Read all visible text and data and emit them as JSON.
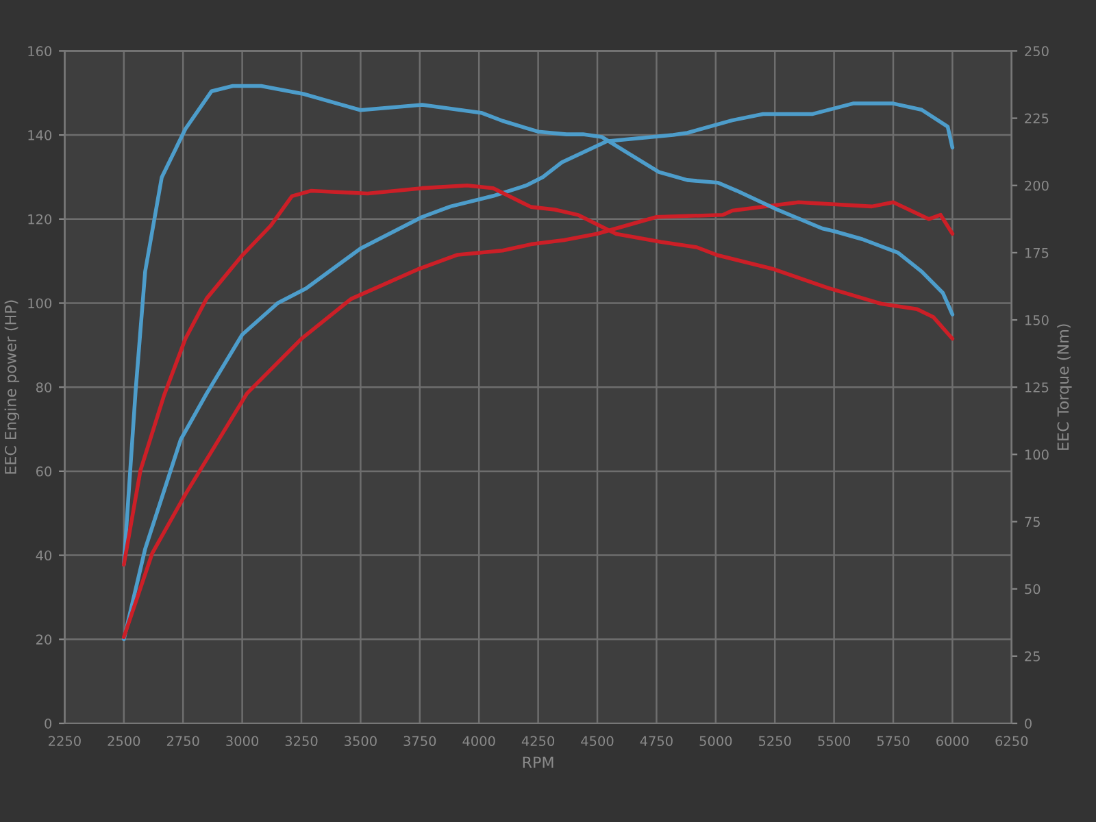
{
  "chart_data": {
    "type": "line",
    "xlabel": "RPM",
    "ylabel": "EEC Engine power (HP)",
    "y2label": "EEC Torque (Nm)",
    "xlim": [
      2250,
      6250
    ],
    "xticks": [
      2250,
      2500,
      2750,
      3000,
      3250,
      3500,
      3750,
      4000,
      4250,
      4500,
      4750,
      5000,
      5250,
      5500,
      5750,
      6000,
      6250
    ],
    "ylim": [
      0,
      160
    ],
    "yticks": [
      0,
      20,
      40,
      60,
      80,
      100,
      120,
      140,
      160
    ],
    "y2lim": [
      0,
      250
    ],
    "y2ticks": [
      0,
      25,
      50,
      75,
      100,
      125,
      150,
      175,
      200,
      225,
      250
    ],
    "grid": true,
    "marker": "none",
    "line_style": "solid",
    "series": [
      {
        "color": "#4d9dcb",
        "axis": "y2",
        "x": [
          2500,
          2550,
          2590,
          2660,
          2760,
          2870,
          2960,
          3080,
          3260,
          3340,
          3500,
          3760,
          4010,
          4100,
          4250,
          4370,
          4440,
          4520,
          4630,
          4760,
          4880,
          5010,
          5090,
          5260,
          5450,
          5500,
          5620,
          5770,
          5870,
          5960,
          6000
        ],
        "values": [
          59,
          124,
          168,
          203,
          221,
          235,
          237,
          237,
          234,
          232,
          228,
          230,
          227,
          224,
          220,
          219,
          219,
          218,
          212,
          205,
          202,
          201,
          198,
          191,
          184,
          183,
          180,
          175,
          168,
          160,
          152
        ]
      },
      {
        "color": "#cc1f27",
        "axis": "y2",
        "x": [
          2500,
          2570,
          2670,
          2760,
          2850,
          3000,
          3120,
          3210,
          3290,
          3530,
          3760,
          3950,
          4060,
          4220,
          4320,
          4420,
          4580,
          4770,
          4920,
          5010,
          5240,
          5470,
          5700,
          5850,
          5920,
          6000
        ],
        "values": [
          59,
          94,
          122,
          143,
          158,
          174,
          185,
          196,
          198,
          197,
          199,
          200,
          199,
          192,
          191,
          189,
          182,
          179,
          177,
          174,
          169,
          162,
          156,
          154,
          151,
          143
        ]
      },
      {
        "color": "#4d9dcb",
        "x": [
          2500,
          2590,
          2740,
          2850,
          3000,
          3150,
          3270,
          3500,
          3760,
          3880,
          4060,
          4200,
          4270,
          4350,
          4540,
          4630,
          4820,
          4880,
          5070,
          5200,
          5410,
          5580,
          5750,
          5870,
          5980,
          6000
        ],
        "values": [
          20,
          41.5,
          67.5,
          78.5,
          92.5,
          100,
          103.5,
          113,
          120.5,
          123,
          125.5,
          128,
          130,
          133.5,
          138.5,
          139,
          140,
          140.5,
          143.5,
          145,
          145,
          147.5,
          147.5,
          146,
          142,
          137
        ]
      },
      {
        "color": "#cc1f27",
        "x": [
          2500,
          2620,
          2760,
          3020,
          3250,
          3460,
          3740,
          3910,
          4100,
          4220,
          4360,
          4500,
          4750,
          5030,
          5070,
          5350,
          5660,
          5750,
          5900,
          5950,
          6000
        ],
        "values": [
          20.5,
          40.5,
          54.5,
          78.5,
          91.5,
          101,
          108,
          111.5,
          112.5,
          114,
          115,
          116.5,
          120.5,
          121,
          122,
          124,
          123,
          124,
          120,
          121,
          116.5
        ]
      }
    ]
  }
}
